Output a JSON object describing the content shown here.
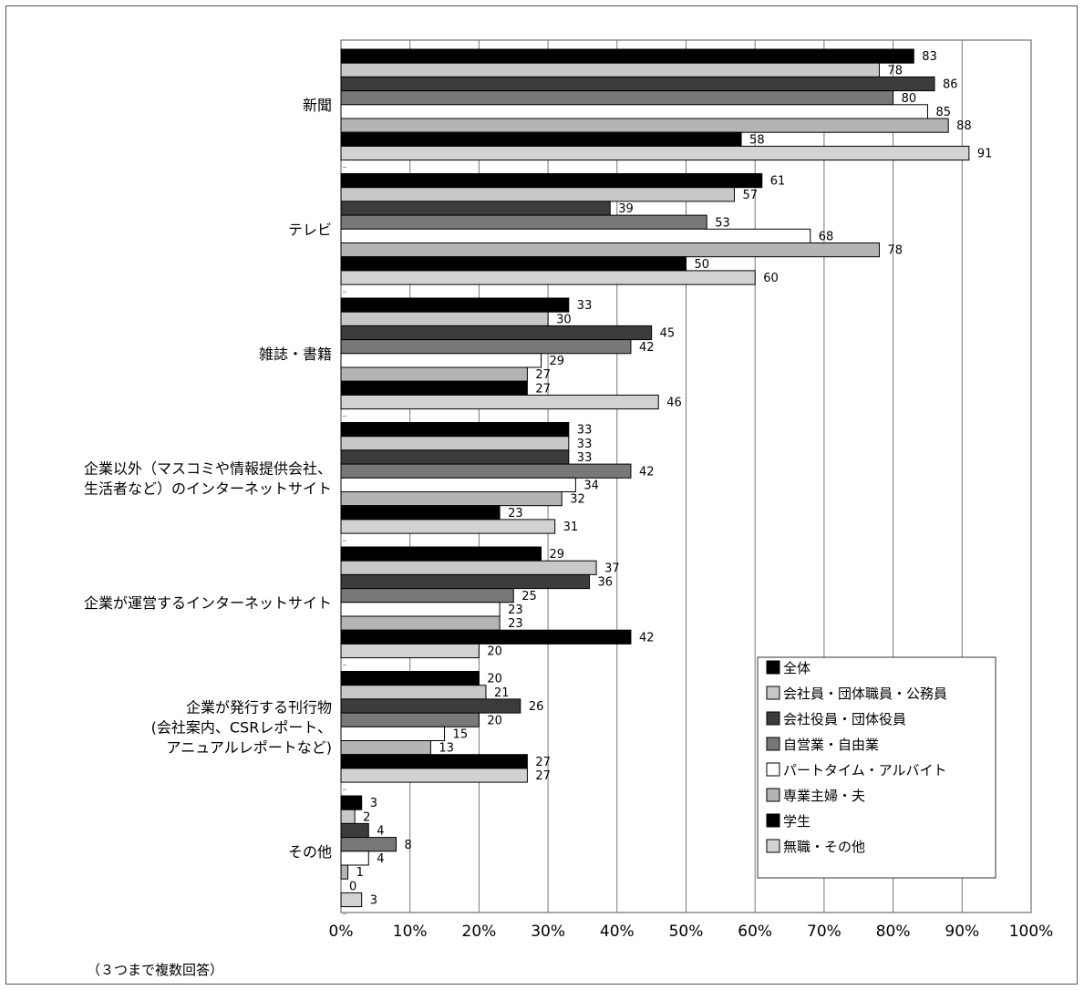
{
  "note": "（３つまで複数回答）",
  "chart_data": {
    "type": "bar",
    "orientation": "horizontal",
    "title": "",
    "xlabel": "",
    "ylabel": "",
    "xlim": [
      0,
      100
    ],
    "xticks": [
      "0%",
      "10%",
      "20%",
      "30%",
      "40%",
      "50%",
      "60%",
      "70%",
      "80%",
      "90%",
      "100%"
    ],
    "grid": true,
    "legend_position": "bottom-right",
    "categories": [
      [
        "新聞"
      ],
      [
        "テレビ"
      ],
      [
        "雑誌・書籍"
      ],
      [
        "企業以外（マスコミや情報提供会社、",
        "生活者など）のインターネットサイト"
      ],
      [
        "企業が運営するインターネットサイト"
      ],
      [
        "企業が発行する刊行物",
        "(会社案内、CSRレポート、",
        "アニュアルレポートなど)"
      ],
      [
        "その他"
      ]
    ],
    "series": [
      {
        "name": "全体",
        "color": "#000000",
        "values": [
          83,
          61,
          33,
          33,
          29,
          20,
          3
        ]
      },
      {
        "name": "会社員・団体職員・公務員",
        "color": "#c8c8c8",
        "values": [
          78,
          57,
          30,
          33,
          37,
          21,
          2
        ]
      },
      {
        "name": "会社役員・団体役員",
        "color": "#3c3c3c",
        "values": [
          86,
          39,
          45,
          33,
          36,
          26,
          4
        ]
      },
      {
        "name": "自営業・自由業",
        "color": "#787878",
        "values": [
          80,
          53,
          42,
          42,
          25,
          20,
          8
        ]
      },
      {
        "name": "パートタイム・アルバイト",
        "color": "#ffffff",
        "values": [
          85,
          68,
          29,
          34,
          23,
          15,
          4
        ]
      },
      {
        "name": "専業主婦・夫",
        "color": "#b4b4b4",
        "values": [
          88,
          78,
          27,
          32,
          23,
          13,
          1
        ]
      },
      {
        "name": "学生",
        "color": "#000000",
        "values": [
          58,
          50,
          27,
          23,
          42,
          27,
          0
        ]
      },
      {
        "name": "無職・その他",
        "color": "#d2d2d2",
        "values": [
          91,
          60,
          46,
          31,
          20,
          27,
          3
        ]
      }
    ]
  }
}
